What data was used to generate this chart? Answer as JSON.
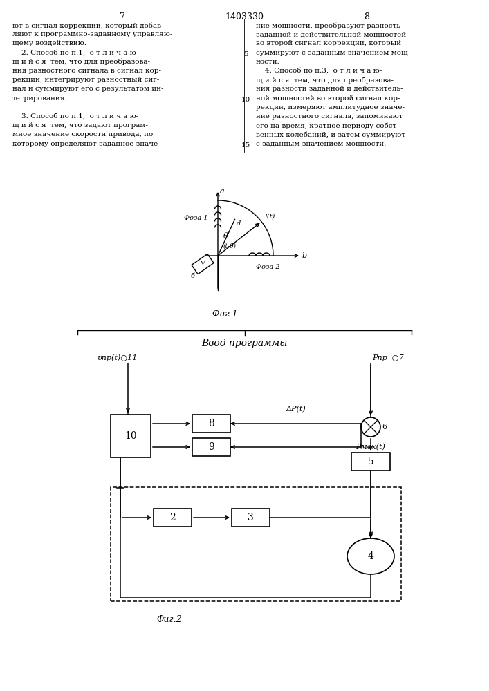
{
  "page_num_left": "7",
  "page_num_center": "1403330",
  "page_num_right": "8",
  "text_left": [
    "ют в сигнал коррекции, который добав-",
    "ляют к программно-заданному управляю-",
    "щему воздействию.",
    "    2. Способ по п.1,  о т л и ч а ю-",
    "щ и й с я  тем, что для преобразова-",
    "ния разностного сигнала в сигнал кор-",
    "рекции, интегрируют разностный сиг-",
    "нал и суммируют его с результатом ин-",
    "тегрирования.",
    "",
    "    3. Способ по п.1,  о т л и ч а ю-",
    "щ и й с я  тем, что задают програм-",
    "мное значение скорости привода, по",
    "которому определяют заданное значе-"
  ],
  "text_right": [
    "ние мощности, преобразуют разность",
    "заданной и действительной мощностей",
    "во второй сигнал коррекции, который",
    "суммируют с заданным значением мощ-",
    "ности.",
    "    4. Способ по п.3,  о т л и ч а ю-",
    "щ и й с я  тем, что для преобразова-",
    "ния разности заданной и действитель-",
    "ной мощностей во второй сигнал кор-",
    "рекции, измеряют амплитудное значе-",
    "ние разностного сигнала, запоминают",
    "его на время, кратное периоду собст-",
    "венных колебаний, и затем суммируют",
    "с заданным значением мощности."
  ],
  "fig1_label": "Фиг 1",
  "fig2_label": "Фиг.2",
  "program_label": "Ввод программы"
}
